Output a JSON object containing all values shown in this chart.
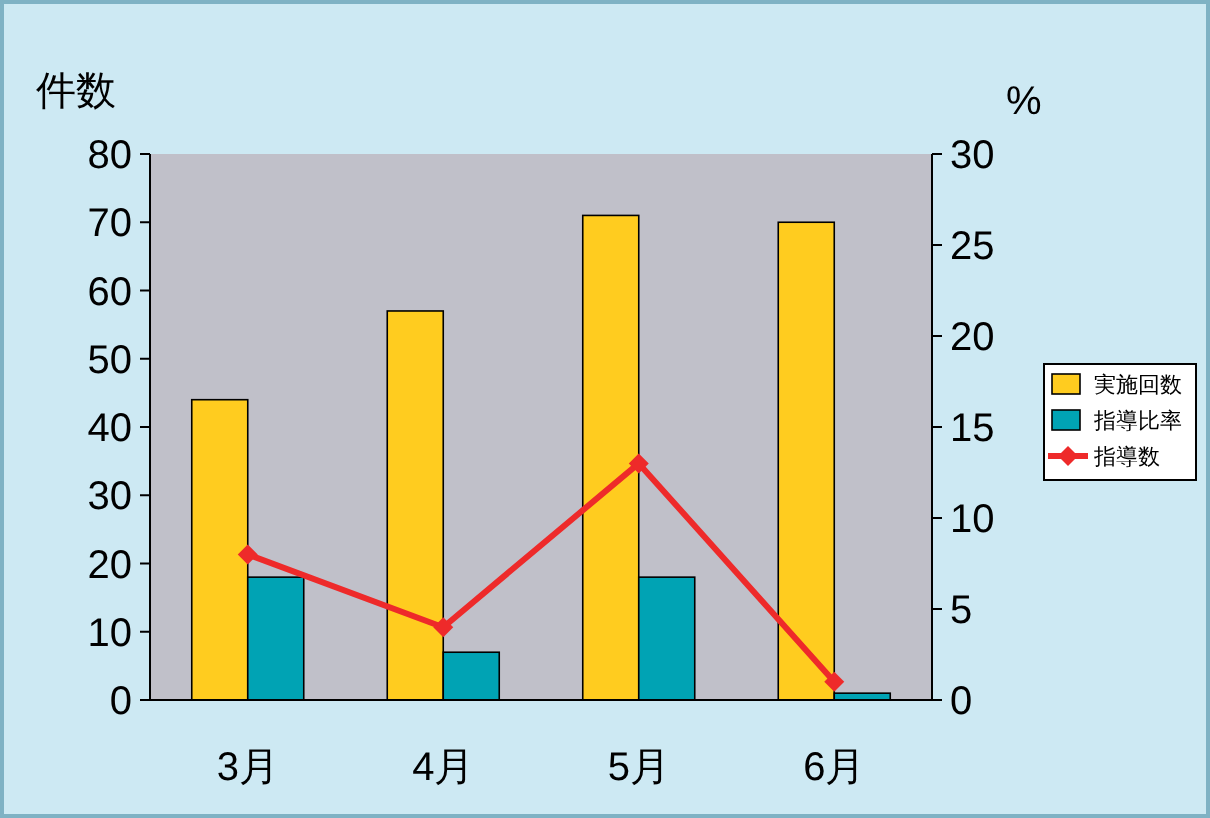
{
  "chart_data": {
    "type": "bar",
    "ylabel": "件数",
    "y2label": "%",
    "categories": [
      "3月",
      "4月",
      "5月",
      "6月"
    ],
    "series": [
      {
        "name": "実施回数",
        "color": "#ffcc1f",
        "values": [
          44,
          57,
          71,
          70
        ]
      },
      {
        "name": "指導比率",
        "color": "#00a3b4",
        "values": [
          18,
          7,
          18,
          1
        ]
      },
      {
        "name": "指導数",
        "type": "line",
        "axis": "y2",
        "color": "#ee2a2a",
        "values": [
          8,
          4,
          13,
          1
        ],
        "marker": "diamond"
      }
    ],
    "ylim": [
      0,
      80
    ],
    "yticks": [
      0,
      10,
      20,
      30,
      40,
      50,
      60,
      70,
      80
    ],
    "y2lim": [
      0,
      30
    ],
    "y2ticks": [
      0,
      5,
      10,
      15,
      20,
      25,
      30
    ],
    "legend": "right",
    "grid": false
  }
}
